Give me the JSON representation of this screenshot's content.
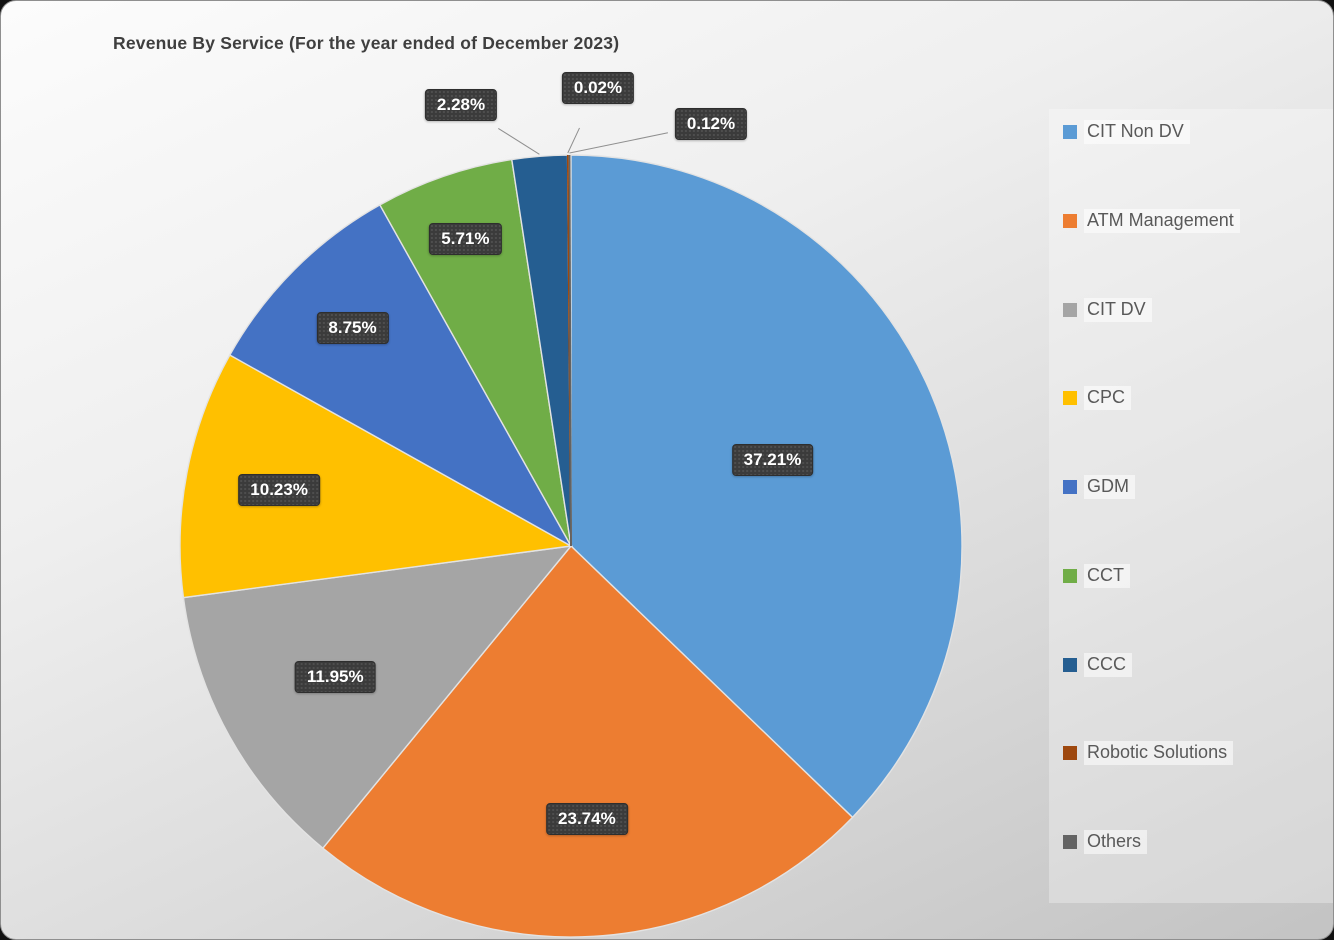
{
  "chart_data": {
    "type": "pie",
    "title": "Revenue By Service (For the year ended of December 2023)",
    "start_angle_deg": 0,
    "direction": "clockwise",
    "legend_position": "right",
    "label_suffix": "%",
    "data_label_bg": "#3B3B3B",
    "data_label_text": "#FFFFFF",
    "leader_line_color": "#8f8f8f",
    "series": [
      {
        "name": "CIT Non DV",
        "value": 37.21,
        "color": "#5B9BD5"
      },
      {
        "name": "ATM Management",
        "value": 23.74,
        "color": "#ED7D31"
      },
      {
        "name": "CIT DV",
        "value": 11.95,
        "color": "#A5A5A5"
      },
      {
        "name": "CPC",
        "value": 10.23,
        "color": "#FFC000"
      },
      {
        "name": "GDM",
        "value": 8.75,
        "color": "#4472C4"
      },
      {
        "name": "CCT",
        "value": 5.71,
        "color": "#70AD47"
      },
      {
        "name": "CCC",
        "value": 2.28,
        "color": "#255E91"
      },
      {
        "name": "Robotic Solutions",
        "value": 0.02,
        "color": "#9E480E"
      },
      {
        "name": "Others",
        "value": 0.12,
        "color": "#636363"
      }
    ]
  }
}
